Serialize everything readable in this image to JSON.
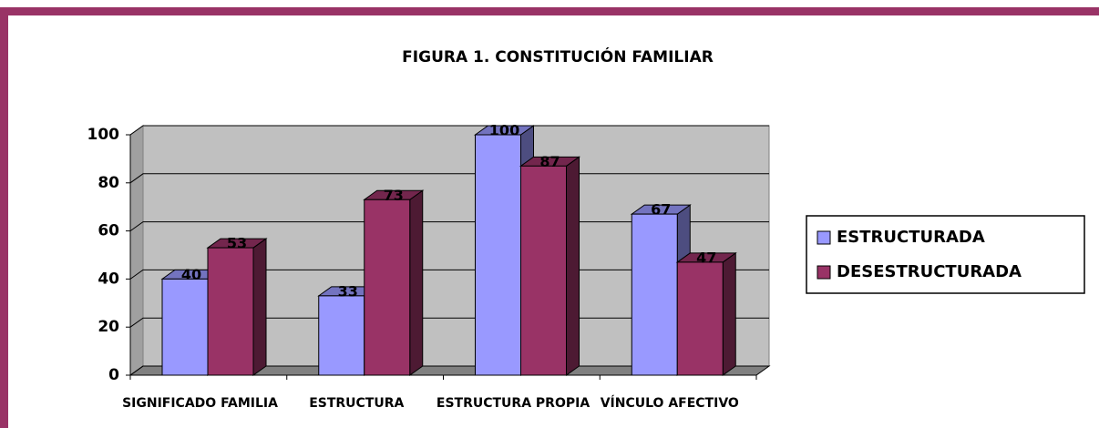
{
  "chart_data": {
    "type": "bar3d",
    "title": "FIGURA 1. CONSTITUCIÓN FAMILIAR",
    "categories": [
      "SIGNIFICADO  FAMILIA",
      "ESTRUCTURA",
      "ESTRUCTURA PROPIA",
      "VÍNCULO AFECTIVO"
    ],
    "series": [
      {
        "name": "ESTRUCTURADA",
        "color": "#9999ff",
        "values": [
          40,
          33,
          100,
          67
        ]
      },
      {
        "name": "DESESTRUCTURADA",
        "color": "#993366",
        "values": [
          53,
          73,
          87,
          47
        ]
      }
    ],
    "ylim": [
      0,
      100
    ],
    "yticks": [
      0,
      20,
      40,
      60,
      80,
      100
    ],
    "grid": true,
    "legend": "right"
  }
}
